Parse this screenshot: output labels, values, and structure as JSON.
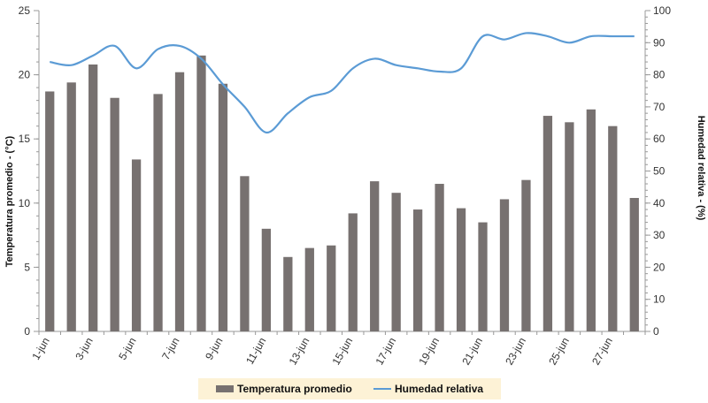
{
  "chart_data": {
    "type": "bar",
    "categories": [
      "1-jun",
      "2-jun",
      "3-jun",
      "4-jun",
      "5-jun",
      "6-jun",
      "7-jun",
      "8-jun",
      "9-jun",
      "10-jun",
      "11-jun",
      "12-jun",
      "13-jun",
      "14-jun",
      "15-jun",
      "16-jun",
      "17-jun",
      "18-jun",
      "19-jun",
      "20-jun",
      "21-jun",
      "22-jun",
      "23-jun",
      "24-jun",
      "25-jun",
      "26-jun",
      "27-jun",
      "28-jun"
    ],
    "x_tick_labels": [
      "1-jun",
      "3-jun",
      "5-jun",
      "7-jun",
      "9-jun",
      "11-jun",
      "13-jun",
      "15-jun",
      "17-jun",
      "19-jun",
      "21-jun",
      "23-jun",
      "25-jun",
      "27-jun"
    ],
    "series": [
      {
        "name": "Temperatura promedio",
        "type": "bar",
        "axis": "left",
        "color": "#777170",
        "values": [
          18.7,
          19.4,
          20.8,
          18.2,
          13.4,
          18.5,
          20.2,
          21.5,
          19.3,
          12.1,
          8.0,
          5.8,
          6.5,
          6.7,
          9.2,
          11.7,
          10.8,
          9.5,
          11.5,
          9.6,
          8.5,
          10.3,
          11.8,
          16.8,
          16.3,
          17.3,
          16.0,
          10.4
        ]
      },
      {
        "name": "Humedad relativa",
        "type": "line",
        "axis": "right",
        "color": "#5b9bd5",
        "values": [
          84,
          83,
          86,
          89,
          82,
          88,
          89,
          85,
          77,
          70,
          62,
          68,
          73,
          75,
          82,
          85,
          83,
          82,
          81,
          82,
          92,
          91,
          93,
          92,
          90,
          92,
          92,
          92
        ]
      }
    ],
    "ylabel": "Temperatura promedio - (°C)",
    "y2label": "Humedad relativa - (%)",
    "ylim": [
      0,
      25
    ],
    "y2lim": [
      0,
      100
    ],
    "yticks": [
      "0",
      "5",
      "10",
      "15",
      "20",
      "25"
    ],
    "y2ticks": [
      "0",
      "10",
      "20",
      "30",
      "40",
      "50",
      "60",
      "70",
      "80",
      "90",
      "100"
    ],
    "legend": {
      "position": "bottom",
      "entries": [
        "Temperatura promedio",
        "Humedad relativa"
      ],
      "background": "#fdf2d6"
    }
  }
}
